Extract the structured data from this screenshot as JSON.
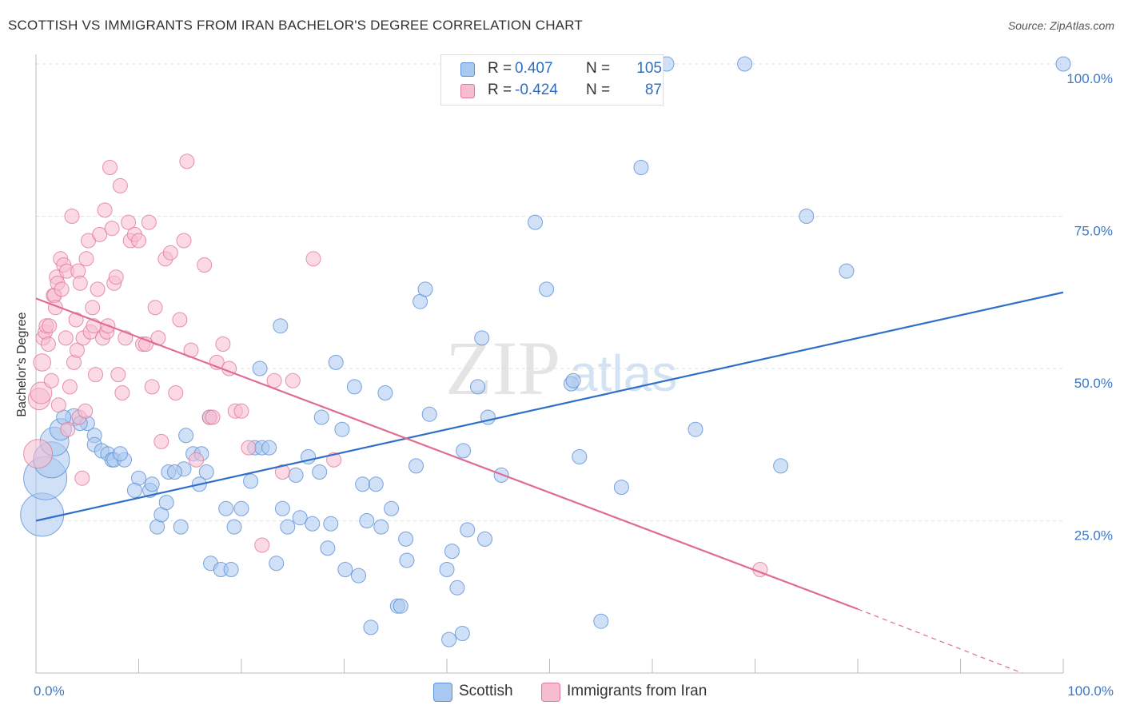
{
  "title": "SCOTTISH VS IMMIGRANTS FROM IRAN BACHELOR'S DEGREE CORRELATION CHART",
  "source": "Source: ZipAtlas.com",
  "watermark": {
    "zip": "ZIP",
    "atlas": "atlas"
  },
  "legend": {
    "rows": [
      {
        "r_label": "R =",
        "r_value": "0.407",
        "n_label": "N =",
        "n_value": "105",
        "color": "#a9c8f0",
        "border": "#5b8fd6"
      },
      {
        "r_label": "R =",
        "r_value": "-0.424",
        "n_label": "N =",
        "n_value": "87",
        "color": "#f7bccf",
        "border": "#e07898"
      }
    ]
  },
  "bottom_legend": [
    {
      "label": "Scottish",
      "color": "#a9c8f0",
      "border": "#5b8fd6"
    },
    {
      "label": "Immigrants from Iran",
      "color": "#f7bccf",
      "border": "#e07898"
    }
  ],
  "chart_data": {
    "type": "scatter",
    "title": "SCOTTISH VS IMMIGRANTS FROM IRAN BACHELOR'S DEGREE CORRELATION CHART",
    "xlabel": "",
    "ylabel": "Bachelor's Degree",
    "xlim": [
      0,
      100
    ],
    "ylim": [
      0,
      100
    ],
    "x_tick_labels": [
      {
        "value": 0,
        "label": "0.0%"
      },
      {
        "value": 100,
        "label": "100.0%"
      }
    ],
    "y_tick_labels": [
      {
        "value": 25,
        "label": "25.0%"
      },
      {
        "value": 50,
        "label": "50.0%"
      },
      {
        "value": 75,
        "label": "75.0%"
      },
      {
        "value": 100,
        "label": "100.0%"
      }
    ],
    "grid": true,
    "legend_position": "top-center",
    "series": [
      {
        "name": "Scottish",
        "color": "#a9c8f0",
        "edge": "#5b8fd6",
        "line_color": "#2f6fc8",
        "trend": {
          "x": [
            0,
            100
          ],
          "y": [
            25,
            62.5
          ]
        },
        "points": [
          [
            0.6,
            26,
            3
          ],
          [
            0.9,
            32,
            3
          ],
          [
            1.5,
            35,
            2.5
          ],
          [
            1.8,
            38,
            2
          ],
          [
            2.4,
            40,
            1.5
          ],
          [
            3.7,
            42,
            1.2
          ],
          [
            2.7,
            42,
            1
          ],
          [
            5,
            41,
            1
          ],
          [
            4.3,
            41,
            1
          ],
          [
            5.7,
            39,
            1
          ],
          [
            5.7,
            37.5,
            1
          ],
          [
            6.4,
            36.5,
            1
          ],
          [
            7,
            36,
            1
          ],
          [
            7.4,
            35,
            1
          ],
          [
            7.6,
            35,
            1
          ],
          [
            8.6,
            35,
            1
          ],
          [
            8.2,
            36,
            1
          ],
          [
            10,
            32,
            1
          ],
          [
            9.6,
            30,
            1
          ],
          [
            11.1,
            30,
            1
          ],
          [
            11.3,
            31,
            1
          ],
          [
            11.8,
            24,
            1
          ],
          [
            12.2,
            26,
            1
          ],
          [
            12.7,
            28,
            1
          ],
          [
            12.9,
            33,
            1
          ],
          [
            14.1,
            24,
            1
          ],
          [
            14.4,
            33.5,
            1
          ],
          [
            13.5,
            33,
            1
          ],
          [
            14.6,
            39,
            1
          ],
          [
            15.3,
            36,
            1
          ],
          [
            15.9,
            31,
            1
          ],
          [
            16.1,
            36,
            1
          ],
          [
            16.6,
            33,
            1
          ],
          [
            16.9,
            42,
            1
          ],
          [
            17,
            18,
            1
          ],
          [
            18,
            17,
            1
          ],
          [
            18.5,
            27,
            1
          ],
          [
            19,
            17,
            1
          ],
          [
            19.3,
            24,
            1
          ],
          [
            20,
            27,
            1
          ],
          [
            20.9,
            31.5,
            1
          ],
          [
            21.3,
            37,
            1
          ],
          [
            22,
            37,
            1
          ],
          [
            21.8,
            50,
            1
          ],
          [
            22.7,
            37,
            1
          ],
          [
            23.4,
            18,
            1
          ],
          [
            23.8,
            57,
            1
          ],
          [
            24,
            27,
            1
          ],
          [
            24.5,
            24,
            1
          ],
          [
            25.3,
            32.5,
            1
          ],
          [
            25.7,
            25.5,
            1
          ],
          [
            26.5,
            35.5,
            1
          ],
          [
            26.9,
            24.5,
            1
          ],
          [
            27.6,
            33,
            1
          ],
          [
            27.8,
            42,
            1
          ],
          [
            28.4,
            20.5,
            1
          ],
          [
            28.7,
            24.5,
            1
          ],
          [
            29.2,
            51,
            1
          ],
          [
            29.8,
            40,
            1
          ],
          [
            30.1,
            17,
            1
          ],
          [
            31,
            47,
            1
          ],
          [
            31.4,
            16,
            1
          ],
          [
            31.8,
            31,
            1
          ],
          [
            32.2,
            25,
            1
          ],
          [
            32.6,
            7.5,
            1
          ],
          [
            33.1,
            31,
            1
          ],
          [
            33.6,
            24,
            1
          ],
          [
            34,
            46,
            1
          ],
          [
            34.6,
            27,
            1
          ],
          [
            35.2,
            11,
            1
          ],
          [
            35.5,
            11,
            1
          ],
          [
            36,
            22,
            1
          ],
          [
            36.1,
            18.5,
            1
          ],
          [
            37,
            34,
            1
          ],
          [
            37.4,
            61,
            1
          ],
          [
            37.9,
            63,
            1
          ],
          [
            38.3,
            42.5,
            1
          ],
          [
            40,
            17,
            1
          ],
          [
            40.2,
            5.5,
            1
          ],
          [
            40.5,
            20,
            1
          ],
          [
            41,
            14,
            1
          ],
          [
            41.5,
            6.5,
            1
          ],
          [
            41.6,
            36.5,
            1
          ],
          [
            42,
            23.5,
            1
          ],
          [
            43,
            47,
            1
          ],
          [
            43.4,
            55,
            1
          ],
          [
            43.7,
            22,
            1
          ],
          [
            44,
            42,
            1
          ],
          [
            45.3,
            32.5,
            1
          ],
          [
            48.6,
            74,
            1
          ],
          [
            49.7,
            63,
            1
          ],
          [
            52.1,
            47.5,
            1
          ],
          [
            52.3,
            48,
            1
          ],
          [
            52.9,
            35.5,
            1
          ],
          [
            55,
            8.5,
            1
          ],
          [
            57,
            30.5,
            1
          ],
          [
            58.9,
            83,
            1
          ],
          [
            61.4,
            100,
            1
          ],
          [
            64.2,
            40,
            1
          ],
          [
            69,
            100,
            1
          ],
          [
            72.5,
            34,
            1
          ],
          [
            75,
            75,
            1
          ],
          [
            78.9,
            66,
            1
          ],
          [
            100,
            100,
            1
          ]
        ]
      },
      {
        "name": "Immigrants from Iran",
        "color": "#f7bccf",
        "edge": "#e07898",
        "line_color": "#e06b94",
        "trend": {
          "x": [
            0,
            80
          ],
          "y": [
            61.5,
            10.5
          ]
        },
        "trend_dashed": {
          "x": [
            80,
            96
          ],
          "y": [
            10.5,
            0
          ]
        },
        "points": [
          [
            0.2,
            36,
            2
          ],
          [
            0.3,
            45,
            1.5
          ],
          [
            0.5,
            46,
            1.5
          ],
          [
            0.6,
            51,
            1.2
          ],
          [
            0.7,
            55,
            1
          ],
          [
            0.9,
            56,
            1
          ],
          [
            1,
            57,
            1
          ],
          [
            1.2,
            54,
            1
          ],
          [
            1.3,
            57,
            1
          ],
          [
            1.5,
            48,
            1
          ],
          [
            1.7,
            62,
            1
          ],
          [
            1.8,
            62,
            1
          ],
          [
            1.9,
            60,
            1
          ],
          [
            2,
            65,
            1
          ],
          [
            2.1,
            64,
            1
          ],
          [
            2.2,
            44,
            1
          ],
          [
            2.4,
            68,
            1
          ],
          [
            2.5,
            63,
            1
          ],
          [
            2.7,
            67,
            1
          ],
          [
            2.9,
            55,
            1
          ],
          [
            3,
            66,
            1
          ],
          [
            3.1,
            40,
            1
          ],
          [
            3.3,
            47,
            1
          ],
          [
            3.5,
            75,
            1
          ],
          [
            3.7,
            51,
            1
          ],
          [
            3.9,
            58,
            1
          ],
          [
            4,
            53,
            1
          ],
          [
            4.1,
            66,
            1
          ],
          [
            4.2,
            42,
            1
          ],
          [
            4.3,
            64,
            1
          ],
          [
            4.5,
            32,
            1
          ],
          [
            4.6,
            55,
            1
          ],
          [
            4.8,
            43,
            1
          ],
          [
            4.9,
            68,
            1
          ],
          [
            5.1,
            71,
            1
          ],
          [
            5.3,
            56,
            1
          ],
          [
            5.5,
            60,
            1
          ],
          [
            5.6,
            57,
            1
          ],
          [
            5.8,
            49,
            1
          ],
          [
            6,
            63,
            1
          ],
          [
            6.2,
            72,
            1
          ],
          [
            6.5,
            55,
            1
          ],
          [
            6.7,
            76,
            1
          ],
          [
            6.9,
            56,
            1
          ],
          [
            7,
            57,
            1
          ],
          [
            7.2,
            83,
            1
          ],
          [
            7.4,
            73,
            1
          ],
          [
            7.6,
            64,
            1
          ],
          [
            7.8,
            65,
            1
          ],
          [
            8,
            49,
            1
          ],
          [
            8.2,
            80,
            1
          ],
          [
            8.4,
            46,
            1
          ],
          [
            8.7,
            55,
            1
          ],
          [
            9,
            74,
            1
          ],
          [
            9.2,
            71,
            1
          ],
          [
            9.6,
            72,
            1
          ],
          [
            10,
            71,
            1
          ],
          [
            10.4,
            54,
            1
          ],
          [
            10.7,
            54,
            1
          ],
          [
            11,
            74,
            1
          ],
          [
            11.3,
            47,
            1
          ],
          [
            11.6,
            60,
            1
          ],
          [
            11.9,
            55,
            1
          ],
          [
            12.2,
            38,
            1
          ],
          [
            12.6,
            68,
            1
          ],
          [
            13.1,
            69,
            1
          ],
          [
            13.6,
            46,
            1
          ],
          [
            14,
            58,
            1
          ],
          [
            14.4,
            71,
            1
          ],
          [
            14.7,
            84,
            1
          ],
          [
            15.1,
            53,
            1
          ],
          [
            15.6,
            35,
            1
          ],
          [
            16.4,
            67,
            1
          ],
          [
            16.9,
            42,
            1
          ],
          [
            17.2,
            42,
            1
          ],
          [
            17.6,
            51,
            1
          ],
          [
            18.2,
            54,
            1
          ],
          [
            18.8,
            50,
            1
          ],
          [
            19.4,
            43,
            1
          ],
          [
            20,
            43,
            1
          ],
          [
            20.7,
            37,
            1
          ],
          [
            22,
            21,
            1
          ],
          [
            23.2,
            48,
            1
          ],
          [
            24,
            33,
            1
          ],
          [
            25,
            48,
            1
          ],
          [
            27,
            68,
            1
          ],
          [
            29,
            35,
            1
          ],
          [
            70.5,
            17,
            1
          ]
        ]
      }
    ]
  }
}
